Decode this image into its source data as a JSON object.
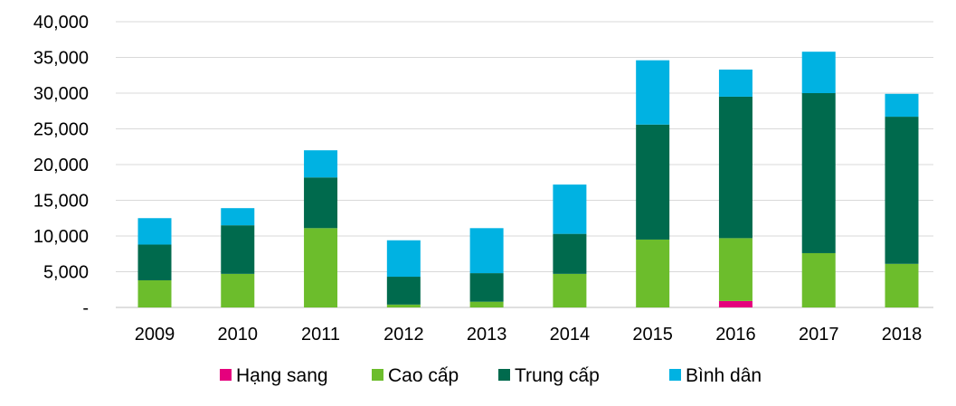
{
  "chart_data": {
    "type": "bar",
    "stacked": true,
    "title": "",
    "xlabel": "",
    "ylabel": "",
    "ylim": [
      0,
      40000
    ],
    "y_ticks": [
      0,
      5000,
      10000,
      15000,
      20000,
      25000,
      30000,
      35000,
      40000
    ],
    "y_tick_labels": [
      "-",
      "5,000",
      "10,000",
      "15,000",
      "20,000",
      "25,000",
      "30,000",
      "35,000",
      "40,000"
    ],
    "grid": true,
    "legend_position": "bottom",
    "categories": [
      "2009",
      "2010",
      "2011",
      "2012",
      "2013",
      "2014",
      "2015",
      "2016",
      "2017",
      "2018"
    ],
    "series": [
      {
        "name": "Hạng sang",
        "color": "#e5007d",
        "values": [
          0,
          0,
          0,
          0,
          0,
          0,
          0,
          900,
          0,
          0
        ]
      },
      {
        "name": "Cao cấp",
        "color": "#6cbd2c",
        "values": [
          3800,
          4700,
          11100,
          400,
          800,
          4700,
          9500,
          8800,
          7600,
          6100
        ]
      },
      {
        "name": "Trung cấp",
        "color": "#006a4d",
        "values": [
          5000,
          6800,
          7100,
          3900,
          4000,
          5600,
          16100,
          19800,
          22400,
          20600
        ]
      },
      {
        "name": "Bình dân",
        "color": "#00b2e2",
        "values": [
          3700,
          2400,
          3800,
          5100,
          6300,
          6900,
          9000,
          3800,
          5800,
          3200
        ]
      }
    ]
  }
}
